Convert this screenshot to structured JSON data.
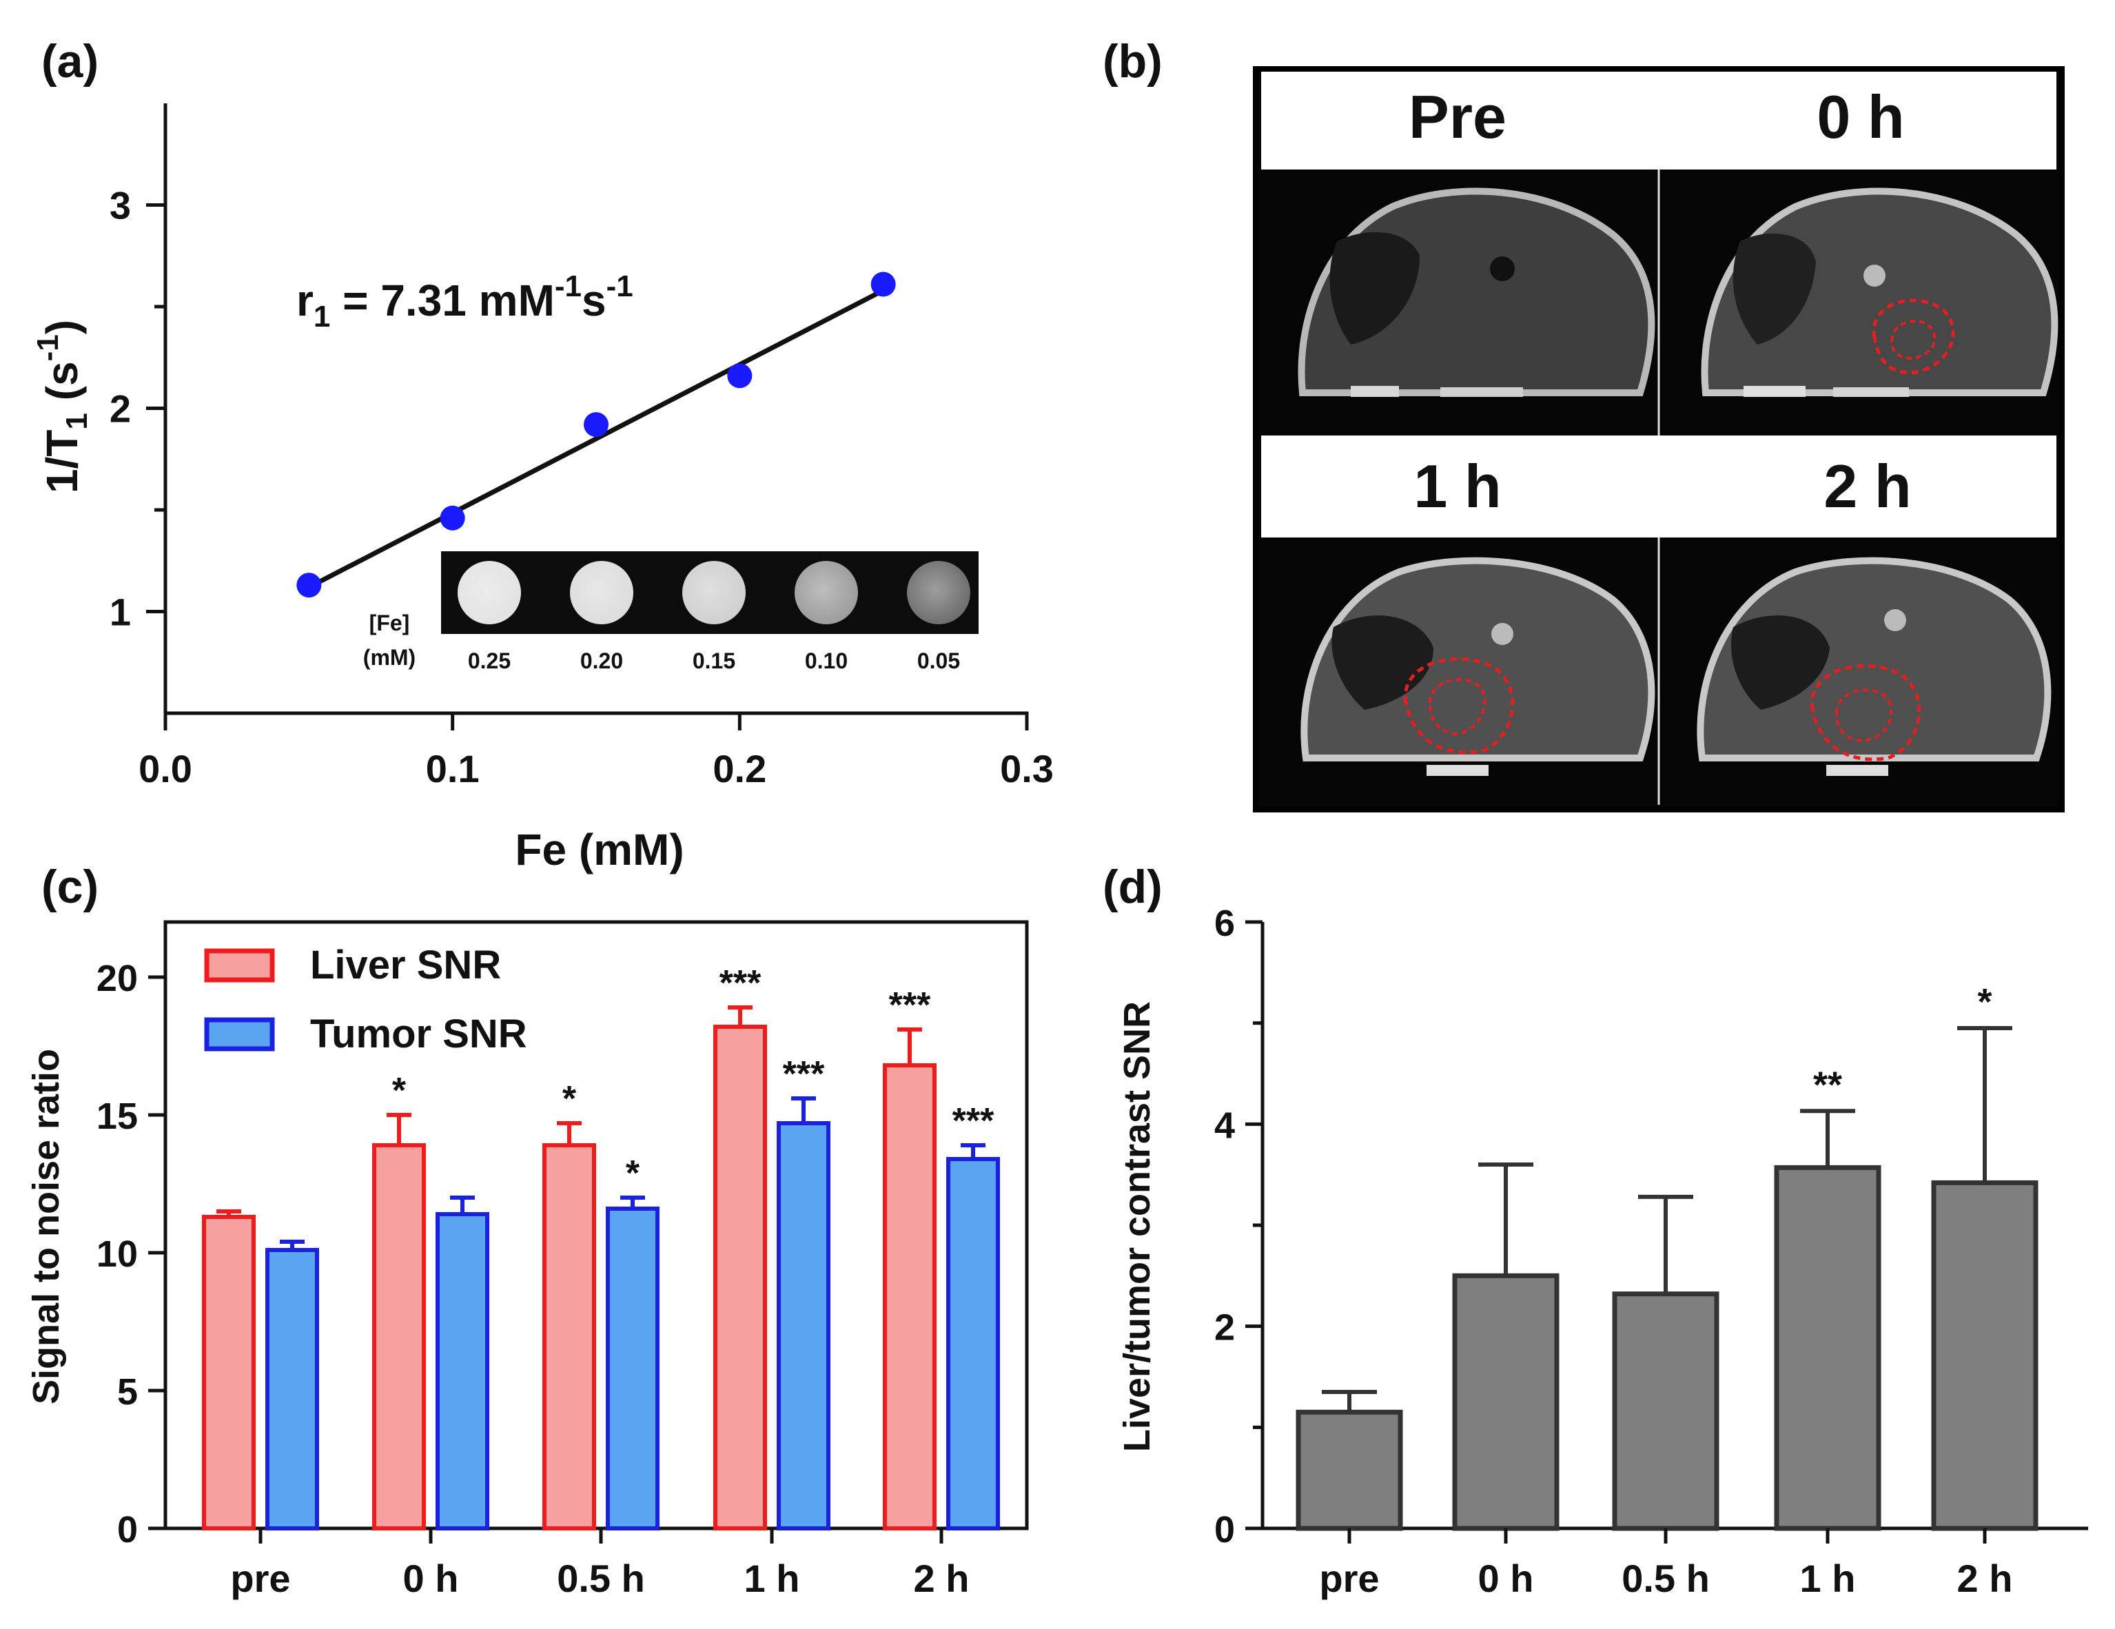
{
  "colors": {
    "point": "#1a1aff",
    "line": "#111111",
    "liver_fill": "#f6a0a0",
    "liver_edge": "#ee1c1c",
    "tumor_fill": "#5aa4f2",
    "tumor_edge": "#1a22e0",
    "gray_fill": "#7f7f7f",
    "gray_edge": "#333333",
    "roi": "#e02020"
  },
  "panel_a": {
    "label": "(a)",
    "annotation": {
      "prefix": "r",
      "sub": "1",
      "mid": " = 7.31 mM",
      "sup1": "-1",
      "s": "s",
      "sup2": "-1"
    },
    "inset_label_1": "[Fe]",
    "inset_label_2": "(mM)",
    "phantom_labels": [
      "0.25",
      "0.20",
      "0.15",
      "0.10",
      "0.05"
    ],
    "phantom_gray": [
      "#e2e2e2",
      "#dcdcdc",
      "#cfcfcf",
      "#9a9a9a",
      "#6a6a6a"
    ]
  },
  "panel_b": {
    "label": "(b)",
    "titles": [
      "Pre",
      "0 h",
      "1 h",
      "2 h"
    ]
  },
  "panel_c": {
    "label": "(c)"
  },
  "panel_d": {
    "label": "(d)"
  },
  "chart_data": [
    {
      "id": "a",
      "type": "scatter",
      "title": "",
      "xlabel": "Fe (mM)",
      "ylabel": "1/T1 (s-1)",
      "ylabel_parts": {
        "main": "1/T",
        "sub": "1",
        "unit": " (s",
        "sup": "-1",
        "close": ")"
      },
      "x": [
        0.05,
        0.1,
        0.15,
        0.2,
        0.25
      ],
      "y": [
        1.13,
        1.46,
        1.92,
        2.16,
        2.61
      ],
      "fit": {
        "x": [
          0.05,
          0.25
        ],
        "y": [
          1.12,
          2.58
        ]
      },
      "xlim": [
        0.0,
        0.3
      ],
      "ylim": [
        0.5,
        3.5
      ],
      "xticks": [
        0.0,
        0.1,
        0.2,
        0.3
      ],
      "xtick_labels": [
        "0.0",
        "0.1",
        "0.2",
        "0.3"
      ],
      "yticks": [
        1,
        2,
        3
      ],
      "ytick_labels": [
        "1",
        "2",
        "3"
      ],
      "yminor": [
        1.5,
        2.5
      ]
    },
    {
      "id": "c",
      "type": "bar",
      "xlabel": "",
      "ylabel": "Signal to noise ratio",
      "categories": [
        "pre",
        "0 h",
        "0.5 h",
        "1 h",
        "2 h"
      ],
      "series": [
        {
          "name": "Liver SNR",
          "values": [
            11.3,
            13.9,
            13.9,
            18.2,
            16.8
          ],
          "errors": [
            0.2,
            1.1,
            0.8,
            0.7,
            1.3
          ],
          "sig": [
            "",
            "*",
            "*",
            "***",
            "***"
          ]
        },
        {
          "name": "Tumor SNR",
          "values": [
            10.1,
            11.4,
            11.6,
            14.7,
            13.4
          ],
          "errors": [
            0.3,
            0.6,
            0.4,
            0.9,
            0.5
          ],
          "sig": [
            "",
            "",
            "*",
            "***",
            "***"
          ]
        }
      ],
      "ylim": [
        0,
        22
      ],
      "yticks": [
        0,
        5,
        10,
        15,
        20
      ],
      "ytick_labels": [
        "0",
        "5",
        "10",
        "15",
        "20"
      ],
      "legend": "top-left"
    },
    {
      "id": "d",
      "type": "bar",
      "xlabel": "",
      "ylabel": "Liver/tumor contrast SNR",
      "categories": [
        "pre",
        "0 h",
        "0.5 h",
        "1 h",
        "2 h"
      ],
      "values": [
        1.15,
        2.5,
        2.32,
        3.57,
        3.42
      ],
      "errors": [
        0.2,
        1.1,
        0.96,
        0.56,
        1.53
      ],
      "sig": [
        "",
        "",
        "",
        "**",
        "*"
      ],
      "ylim": [
        0,
        6
      ],
      "yticks": [
        0,
        2,
        4,
        6
      ],
      "ytick_labels": [
        "0",
        "2",
        "4",
        "6"
      ],
      "yminor": [
        1,
        3,
        5
      ]
    }
  ]
}
